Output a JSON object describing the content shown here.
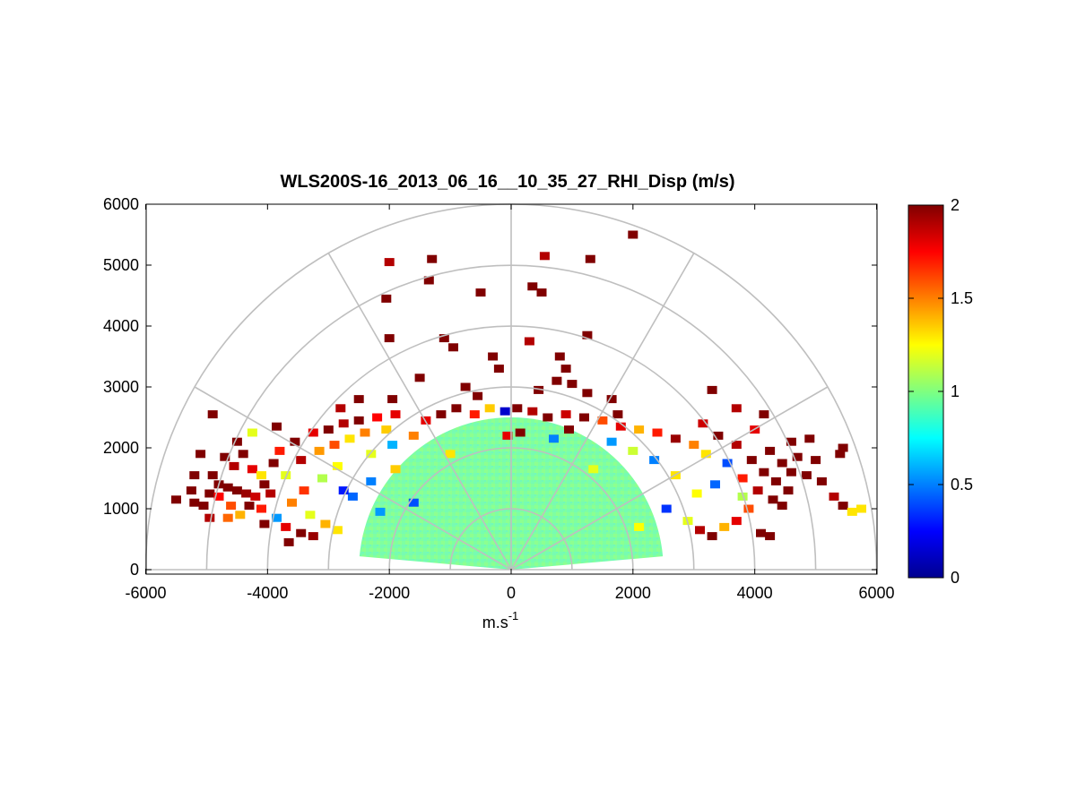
{
  "chart_data": {
    "type": "heatmap",
    "subtype": "polar-rhi-sector",
    "title": "WLS200S-16_2013_06_16__10_35_27_RHI_Disp (m/s)",
    "xlabel": "m.s",
    "xlabel_superscript": "-1",
    "ylabel": "",
    "xlim": [
      -6000,
      6000
    ],
    "ylim": [
      0,
      6000
    ],
    "xticks": [
      -6000,
      -4000,
      -2000,
      0,
      2000,
      4000,
      6000
    ],
    "yticks": [
      0,
      1000,
      2000,
      3000,
      4000,
      5000,
      6000
    ],
    "polar_grid": {
      "range_rings": [
        1000,
        2000,
        3000,
        4000,
        5000,
        6000
      ],
      "spokes_deg": [
        0,
        30,
        60,
        90,
        120,
        150,
        180
      ]
    },
    "colorbar": {
      "min": 0,
      "max": 2,
      "ticks": [
        0,
        0.5,
        1,
        1.5,
        2
      ],
      "tick_labels": [
        "0",
        "0.5",
        "1",
        "1.5",
        "2"
      ],
      "colormap": "jet"
    },
    "core_region": {
      "range_max": 2500,
      "typical_value": 0.95
    },
    "cells": [
      {
        "x": -5200,
        "y": 1100,
        "v": 2.0
      },
      {
        "x": -5050,
        "y": 1050,
        "v": 2.0
      },
      {
        "x": -4950,
        "y": 1250,
        "v": 2.0
      },
      {
        "x": -4800,
        "y": 1400,
        "v": 2.0
      },
      {
        "x": -4650,
        "y": 1350,
        "v": 2.0
      },
      {
        "x": -4500,
        "y": 1300,
        "v": 2.0
      },
      {
        "x": -4350,
        "y": 1250,
        "v": 1.95
      },
      {
        "x": -4200,
        "y": 1200,
        "v": 1.85
      },
      {
        "x": -4800,
        "y": 1200,
        "v": 1.75
      },
      {
        "x": -4600,
        "y": 1050,
        "v": 1.6
      },
      {
        "x": -4450,
        "y": 900,
        "v": 1.4
      },
      {
        "x": -4650,
        "y": 850,
        "v": 1.55
      },
      {
        "x": -4900,
        "y": 1550,
        "v": 2.0
      },
      {
        "x": -4700,
        "y": 1850,
        "v": 2.0
      },
      {
        "x": -4550,
        "y": 1700,
        "v": 1.9
      },
      {
        "x": -4400,
        "y": 1900,
        "v": 2.0
      },
      {
        "x": -4250,
        "y": 1650,
        "v": 1.8
      },
      {
        "x": -4100,
        "y": 1550,
        "v": 1.3
      },
      {
        "x": -4050,
        "y": 1400,
        "v": 2.0
      },
      {
        "x": -3950,
        "y": 1250,
        "v": 1.9
      },
      {
        "x": -3900,
        "y": 1750,
        "v": 2.0
      },
      {
        "x": -3800,
        "y": 1950,
        "v": 1.7
      },
      {
        "x": -3700,
        "y": 1550,
        "v": 1.2
      },
      {
        "x": -3600,
        "y": 1100,
        "v": 1.5
      },
      {
        "x": -3550,
        "y": 2100,
        "v": 2.0
      },
      {
        "x": -3450,
        "y": 1800,
        "v": 1.9
      },
      {
        "x": -3400,
        "y": 1300,
        "v": 1.65
      },
      {
        "x": -3300,
        "y": 900,
        "v": 1.2
      },
      {
        "x": -3250,
        "y": 2250,
        "v": 1.8
      },
      {
        "x": -3150,
        "y": 1950,
        "v": 1.45
      },
      {
        "x": -3100,
        "y": 1500,
        "v": 1.1
      },
      {
        "x": -3000,
        "y": 2300,
        "v": 2.0
      },
      {
        "x": -2900,
        "y": 2050,
        "v": 1.6
      },
      {
        "x": -2850,
        "y": 1700,
        "v": 1.25
      },
      {
        "x": -2750,
        "y": 2400,
        "v": 1.9
      },
      {
        "x": -2650,
        "y": 2150,
        "v": 1.3
      },
      {
        "x": -2500,
        "y": 2450,
        "v": 2.0
      },
      {
        "x": -2400,
        "y": 2250,
        "v": 1.5
      },
      {
        "x": -2300,
        "y": 1900,
        "v": 1.2
      },
      {
        "x": -2200,
        "y": 2500,
        "v": 1.75
      },
      {
        "x": -2050,
        "y": 2300,
        "v": 1.35
      },
      {
        "x": -1950,
        "y": 2050,
        "v": 0.6
      },
      {
        "x": -3700,
        "y": 700,
        "v": 1.8
      },
      {
        "x": -3450,
        "y": 600,
        "v": 2.0
      },
      {
        "x": -3250,
        "y": 550,
        "v": 1.95
      },
      {
        "x": -3050,
        "y": 750,
        "v": 1.4
      },
      {
        "x": -2850,
        "y": 650,
        "v": 1.3
      },
      {
        "x": -4100,
        "y": 1000,
        "v": 1.7
      },
      {
        "x": -3850,
        "y": 850,
        "v": 0.55
      },
      {
        "x": -2600,
        "y": 1200,
        "v": 0.45
      },
      {
        "x": -2300,
        "y": 1450,
        "v": 0.5
      },
      {
        "x": -1900,
        "y": 1650,
        "v": 1.35
      },
      {
        "x": -1600,
        "y": 2200,
        "v": 1.5
      },
      {
        "x": -1400,
        "y": 2450,
        "v": 1.8
      },
      {
        "x": -1150,
        "y": 2550,
        "v": 2.0
      },
      {
        "x": -900,
        "y": 2650,
        "v": 2.0
      },
      {
        "x": -600,
        "y": 2550,
        "v": 1.7
      },
      {
        "x": -350,
        "y": 2650,
        "v": 1.35
      },
      {
        "x": -100,
        "y": 2600,
        "v": 0.15
      },
      {
        "x": 100,
        "y": 2650,
        "v": 2.0
      },
      {
        "x": 350,
        "y": 2600,
        "v": 1.9
      },
      {
        "x": 600,
        "y": 2500,
        "v": 2.0
      },
      {
        "x": 900,
        "y": 2550,
        "v": 1.85
      },
      {
        "x": 1200,
        "y": 2500,
        "v": 2.0
      },
      {
        "x": 1500,
        "y": 2450,
        "v": 1.6
      },
      {
        "x": 1800,
        "y": 2350,
        "v": 1.8
      },
      {
        "x": 2100,
        "y": 2300,
        "v": 1.4
      },
      {
        "x": 2400,
        "y": 2250,
        "v": 1.7
      },
      {
        "x": 2700,
        "y": 2150,
        "v": 1.95
      },
      {
        "x": 3000,
        "y": 2050,
        "v": 1.5
      },
      {
        "x": 3200,
        "y": 1900,
        "v": 1.3
      },
      {
        "x": 3400,
        "y": 2200,
        "v": 2.0
      },
      {
        "x": 3550,
        "y": 1750,
        "v": 0.4
      },
      {
        "x": 3700,
        "y": 2050,
        "v": 1.9
      },
      {
        "x": 3800,
        "y": 1500,
        "v": 1.7
      },
      {
        "x": 3950,
        "y": 1800,
        "v": 2.0
      },
      {
        "x": 4050,
        "y": 1300,
        "v": 1.9
      },
      {
        "x": 4150,
        "y": 1600,
        "v": 2.0
      },
      {
        "x": 4250,
        "y": 1950,
        "v": 2.0
      },
      {
        "x": 4350,
        "y": 1450,
        "v": 2.0
      },
      {
        "x": 4450,
        "y": 1750,
        "v": 2.0
      },
      {
        "x": 4550,
        "y": 1300,
        "v": 2.0
      },
      {
        "x": 4600,
        "y": 1600,
        "v": 2.0
      },
      {
        "x": 4450,
        "y": 1050,
        "v": 2.0
      },
      {
        "x": 4300,
        "y": 1150,
        "v": 2.0
      },
      {
        "x": 4700,
        "y": 1850,
        "v": 2.0
      },
      {
        "x": 4850,
        "y": 1550,
        "v": 2.0
      },
      {
        "x": 4900,
        "y": 2150,
        "v": 2.0
      },
      {
        "x": 5000,
        "y": 1800,
        "v": 2.0
      },
      {
        "x": 5100,
        "y": 1450,
        "v": 2.0
      },
      {
        "x": 5300,
        "y": 1200,
        "v": 1.9
      },
      {
        "x": 5450,
        "y": 1050,
        "v": 2.0
      },
      {
        "x": 5600,
        "y": 950,
        "v": 1.3
      },
      {
        "x": 5400,
        "y": 1900,
        "v": 2.0
      },
      {
        "x": 3900,
        "y": 1000,
        "v": 1.6
      },
      {
        "x": 3700,
        "y": 800,
        "v": 1.8
      },
      {
        "x": 3500,
        "y": 700,
        "v": 1.4
      },
      {
        "x": 3300,
        "y": 550,
        "v": 2.0
      },
      {
        "x": 3100,
        "y": 650,
        "v": 1.9
      },
      {
        "x": 2900,
        "y": 800,
        "v": 1.2
      },
      {
        "x": 4100,
        "y": 600,
        "v": 2.0
      },
      {
        "x": 4250,
        "y": 550,
        "v": 2.0
      },
      {
        "x": 3800,
        "y": 1200,
        "v": 1.1
      },
      {
        "x": 3350,
        "y": 1400,
        "v": 0.45
      },
      {
        "x": 3050,
        "y": 1250,
        "v": 1.25
      },
      {
        "x": 2700,
        "y": 1550,
        "v": 1.3
      },
      {
        "x": 2350,
        "y": 1800,
        "v": 0.5
      },
      {
        "x": 2000,
        "y": 1950,
        "v": 1.15
      },
      {
        "x": 1650,
        "y": 2100,
        "v": 0.55
      },
      {
        "x": 4600,
        "y": 2100,
        "v": 2.0
      },
      {
        "x": 4000,
        "y": 2300,
        "v": 1.8
      },
      {
        "x": 3150,
        "y": 2400,
        "v": 1.85
      },
      {
        "x": -2150,
        "y": 950,
        "v": 0.55
      },
      {
        "x": -1600,
        "y": 1100,
        "v": 0.4
      },
      {
        "x": -1000,
        "y": 1900,
        "v": 1.3
      },
      {
        "x": 700,
        "y": 2150,
        "v": 0.5
      },
      {
        "x": 1350,
        "y": 1650,
        "v": 1.2
      },
      {
        "x": 2550,
        "y": 1000,
        "v": 0.35
      },
      {
        "x": 2100,
        "y": 700,
        "v": 1.25
      },
      {
        "x": -2750,
        "y": 1300,
        "v": 0.3
      },
      {
        "x": -5500,
        "y": 1150,
        "v": 2.0
      },
      {
        "x": -5250,
        "y": 1300,
        "v": 2.0
      },
      {
        "x": -4950,
        "y": 850,
        "v": 1.9
      },
      {
        "x": -5100,
        "y": 1900,
        "v": 2.0
      },
      {
        "x": -4250,
        "y": 2250,
        "v": 1.2
      },
      {
        "x": -3850,
        "y": 2350,
        "v": 2.0
      },
      {
        "x": -4900,
        "y": 2550,
        "v": 2.0
      },
      {
        "x": -4500,
        "y": 2100,
        "v": 2.0
      },
      {
        "x": -4300,
        "y": 1050,
        "v": 2.0
      },
      {
        "x": -4050,
        "y": 750,
        "v": 2.0
      },
      {
        "x": -3650,
        "y": 450,
        "v": 2.0
      },
      {
        "x": -5200,
        "y": 1550,
        "v": 2.0
      },
      {
        "x": -2000,
        "y": 5050,
        "v": 1.9
      },
      {
        "x": -1300,
        "y": 5100,
        "v": 2.0
      },
      {
        "x": -1350,
        "y": 4750,
        "v": 2.0
      },
      {
        "x": -500,
        "y": 4550,
        "v": 2.0
      },
      {
        "x": 550,
        "y": 5150,
        "v": 1.9
      },
      {
        "x": 1300,
        "y": 5100,
        "v": 2.0
      },
      {
        "x": 2000,
        "y": 5500,
        "v": 2.0
      },
      {
        "x": 350,
        "y": 4650,
        "v": 2.0
      },
      {
        "x": 500,
        "y": 4550,
        "v": 2.0
      },
      {
        "x": 1250,
        "y": 3850,
        "v": 2.0
      },
      {
        "x": -2050,
        "y": 4450,
        "v": 2.0
      },
      {
        "x": -2000,
        "y": 3800,
        "v": 2.0
      },
      {
        "x": -1100,
        "y": 3800,
        "v": 2.0
      },
      {
        "x": -950,
        "y": 3650,
        "v": 2.0
      },
      {
        "x": -300,
        "y": 3500,
        "v": 2.0
      },
      {
        "x": -200,
        "y": 3300,
        "v": 2.0
      },
      {
        "x": 300,
        "y": 3750,
        "v": 1.9
      },
      {
        "x": 800,
        "y": 3500,
        "v": 2.0
      },
      {
        "x": 900,
        "y": 3300,
        "v": 2.0
      },
      {
        "x": 750,
        "y": 3100,
        "v": 2.0
      },
      {
        "x": 1000,
        "y": 3050,
        "v": 2.0
      },
      {
        "x": 1250,
        "y": 2900,
        "v": 2.0
      },
      {
        "x": -1500,
        "y": 3150,
        "v": 2.0
      },
      {
        "x": -1950,
        "y": 2800,
        "v": 2.0
      },
      {
        "x": -750,
        "y": 3000,
        "v": 2.0
      },
      {
        "x": -550,
        "y": 2850,
        "v": 2.0
      },
      {
        "x": 450,
        "y": 2950,
        "v": 2.0
      },
      {
        "x": 1650,
        "y": 2800,
        "v": 2.0
      },
      {
        "x": 3300,
        "y": 2950,
        "v": 2.0
      },
      {
        "x": 3700,
        "y": 2650,
        "v": 1.9
      },
      {
        "x": -2500,
        "y": 2800,
        "v": 2.0
      },
      {
        "x": -2800,
        "y": 2650,
        "v": 1.9
      },
      {
        "x": 4150,
        "y": 2550,
        "v": 2.0
      },
      {
        "x": 5450,
        "y": 2000,
        "v": 2.0
      },
      {
        "x": 5750,
        "y": 1000,
        "v": 1.3
      },
      {
        "x": 150,
        "y": 2250,
        "v": 2.0
      },
      {
        "x": -60,
        "y": 2200,
        "v": 1.8
      },
      {
        "x": 950,
        "y": 2300,
        "v": 2.0
      },
      {
        "x": 1750,
        "y": 2550,
        "v": 2.0
      },
      {
        "x": -1900,
        "y": 2550,
        "v": 1.8
      }
    ]
  }
}
